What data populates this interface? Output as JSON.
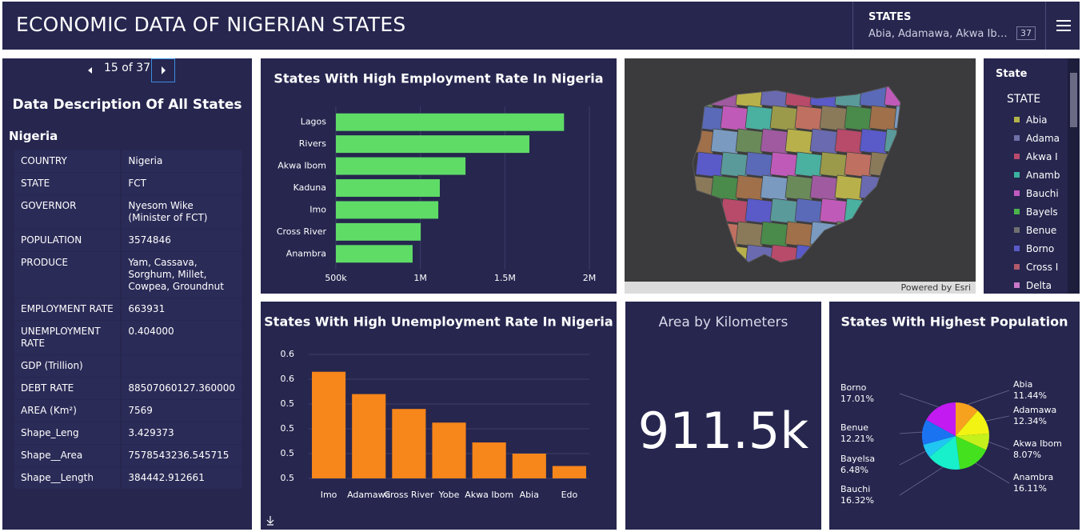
{
  "header": {
    "title": "ECONOMIC DATA OF NIGERIAN STATES",
    "filter_label": "STATES",
    "filter_value": "Abia, Adamawa, Akwa Ib…",
    "filter_count": 37
  },
  "details": {
    "pager": "15 of 37",
    "title": "Data Description Of All States",
    "subtitle": "Nigeria",
    "rows": [
      [
        "COUNTRY",
        "Nigeria"
      ],
      [
        "STATE",
        "FCT"
      ],
      [
        "GOVERNOR",
        "Nyesom Wike (Minister of FCT)"
      ],
      [
        "POPULATION",
        "3574846"
      ],
      [
        "PRODUCE",
        "Yam, Cassava, Sorghum, Millet, Cowpea, Groundnut"
      ],
      [
        "EMPLOYMENT RATE",
        "663931"
      ],
      [
        "UNEMPLOYMENT RATE",
        "0.404000"
      ],
      [
        "GDP (Trillion)"
      ],
      [
        "DEBT RATE",
        "88507060127.360000"
      ],
      [
        "AREA (Km²)",
        "7569"
      ],
      [
        "Shape_Leng",
        "3.429373"
      ],
      [
        "Shape__Area",
        "7578543236.545715"
      ],
      [
        "Shape__Length",
        "384442.912661"
      ]
    ]
  },
  "chart_data": [
    {
      "type": "bar",
      "orientation": "horizontal",
      "title": "States With High Employment Rate In Nigeria",
      "categories": [
        "Lagos",
        "Rivers",
        "Akwa Ibom",
        "Kaduna",
        "Imo",
        "Cross River",
        "Anambra"
      ],
      "values": [
        1850000,
        1645000,
        1267000,
        1115000,
        1106000,
        1002000,
        954000
      ],
      "color": "#5fdc66",
      "xlim": [
        500000,
        2000000
      ],
      "xticks": [
        {
          "value": 500000,
          "label": "500k"
        },
        {
          "value": 1000000,
          "label": "1M"
        },
        {
          "value": 1500000,
          "label": "1.5M"
        },
        {
          "value": 2000000,
          "label": "2M"
        }
      ],
      "grid": true
    },
    {
      "type": "bar",
      "title": "States With High Unemployment Rate In Nigeria",
      "categories": [
        "Imo",
        "Adamawa",
        "Cross River",
        "Yobe",
        "Akwa Ibom",
        "Abia",
        "Edo"
      ],
      "values": [
        0.566,
        0.548,
        0.536,
        0.525,
        0.509,
        0.5,
        0.49
      ],
      "color": "#f7861b",
      "ylim": [
        0.48,
        0.58
      ],
      "yticks": [
        {
          "value": 0.58,
          "label": "0.6"
        },
        {
          "value": 0.56,
          "label": "0.6"
        },
        {
          "value": 0.54,
          "label": "0.5"
        },
        {
          "value": 0.52,
          "label": "0.5"
        },
        {
          "value": 0.5,
          "label": "0.5"
        },
        {
          "value": 0.48,
          "label": "0.5"
        }
      ],
      "grid": true
    },
    {
      "type": "pie",
      "title": "States With Highest Population",
      "categories": [
        "Abia",
        "Adamawa",
        "Akwa Ibom",
        "Anambra",
        "Bauchi",
        "Bayelsa",
        "Benue",
        "Borno"
      ],
      "values": [
        11.44,
        12.34,
        8.07,
        16.11,
        16.32,
        6.48,
        12.21,
        17.01
      ],
      "value_labels": [
        "11.44%",
        "12.34%",
        "8.07%",
        "16.11%",
        "16.32%",
        "6.48%",
        "12.21%",
        "17.01%"
      ],
      "colors": [
        "#f6a21e",
        "#f3f313",
        "#c4f01b",
        "#44e21e",
        "#18efcb",
        "#1fc7f2",
        "#1a74f2",
        "#c21af0"
      ]
    }
  ],
  "map": {
    "credit": "Powered by Esri"
  },
  "legend": {
    "title": "State",
    "field": "STATE",
    "items": [
      {
        "label": "Abia",
        "color": "#b3b34a"
      },
      {
        "label": "Adama",
        "color": "#7070a8"
      },
      {
        "label": "Akwa I",
        "color": "#b84a6a"
      },
      {
        "label": "Anamb",
        "color": "#3bb39f"
      },
      {
        "label": "Bauchi",
        "color": "#c05ac0"
      },
      {
        "label": "Bayels",
        "color": "#4ab34a"
      },
      {
        "label": "Benue",
        "color": "#707070"
      },
      {
        "label": "Borno",
        "color": "#5a5ac8"
      },
      {
        "label": "Cross I",
        "color": "#b05a6a"
      },
      {
        "label": "Delta",
        "color": "#c878c8"
      }
    ]
  },
  "kpi": {
    "title": "Area by Kilometers",
    "value": "911.5k"
  }
}
